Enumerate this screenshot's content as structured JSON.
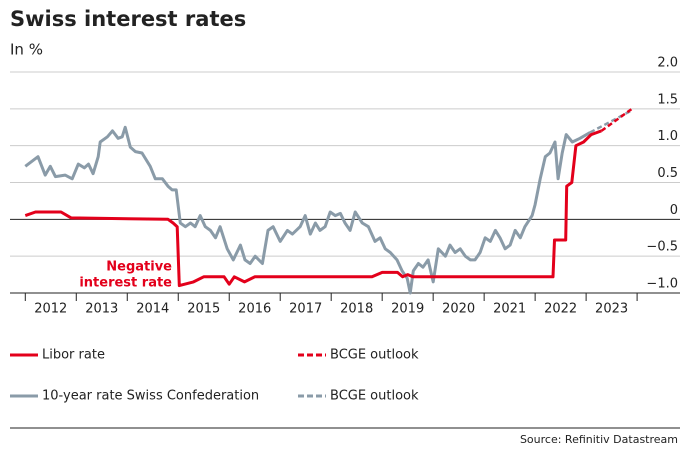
{
  "chart_data": {
    "type": "line",
    "title": "Swiss interest rates",
    "subtitle": "In %",
    "source": "Source: Refinitiv Datastream",
    "annotation": [
      "Negative",
      "interest rate"
    ],
    "xlim": [
      2011.7,
      2023.9
    ],
    "xticks": [
      {
        "value": 2012.5,
        "label": "2012"
      },
      {
        "value": 2013.5,
        "label": "2013"
      },
      {
        "value": 2014.5,
        "label": "2014"
      },
      {
        "value": 2015.5,
        "label": "2015"
      },
      {
        "value": 2016.5,
        "label": "2016"
      },
      {
        "value": 2017.5,
        "label": "2017"
      },
      {
        "value": 2018.5,
        "label": "2018"
      },
      {
        "value": 2019.5,
        "label": "2019"
      },
      {
        "value": 2020.5,
        "label": "2020"
      },
      {
        "value": 2021.5,
        "label": "2021"
      },
      {
        "value": 2022.5,
        "label": "2022"
      },
      {
        "value": 2023.5,
        "label": "2023"
      }
    ],
    "ylim": [
      -1.0,
      2.0
    ],
    "yticks": [
      {
        "value": 2.0,
        "label": "2.0"
      },
      {
        "value": 1.5,
        "label": "1.5"
      },
      {
        "value": 1.0,
        "label": "1.0"
      },
      {
        "value": 0.5,
        "label": "0.5"
      },
      0,
      {
        "value": -0.5,
        "label": "−0.5"
      },
      {
        "value": -1.0,
        "label": "−1.0"
      }
    ],
    "grid": true,
    "series": [
      {
        "name": "Libor rate",
        "color": "#e3001b",
        "dash": false,
        "x": [
          2012.0,
          2012.2,
          2012.7,
          2012.9,
          2014.8,
          2014.9,
          2014.98,
          2015.02,
          2015.3,
          2015.5,
          2015.9,
          2016.0,
          2016.1,
          2016.3,
          2016.5,
          2018.8,
          2019.0,
          2019.3,
          2019.4,
          2019.5,
          2019.6,
          2022.35,
          2022.38,
          2022.6,
          2022.62,
          2022.72,
          2022.8,
          2022.95,
          2023.1,
          2023.3
        ],
        "values": [
          0.05,
          0.1,
          0.1,
          0.02,
          0.0,
          -0.05,
          -0.1,
          -0.9,
          -0.85,
          -0.78,
          -0.78,
          -0.88,
          -0.78,
          -0.85,
          -0.78,
          -0.78,
          -0.72,
          -0.72,
          -0.78,
          -0.75,
          -0.78,
          -0.78,
          -0.28,
          -0.28,
          0.45,
          0.5,
          1.0,
          1.05,
          1.15,
          1.2
        ]
      },
      {
        "name": "BCGE outlook",
        "color": "#e3001b",
        "dash": true,
        "x": [
          2023.3,
          2023.9
        ],
        "values": [
          1.2,
          1.5
        ]
      },
      {
        "name": "10-year rate Swiss Confederation",
        "color": "#8a9ba8",
        "dash": false,
        "x": [
          2012.0,
          2012.25,
          2012.39,
          2012.49,
          2012.59,
          2012.78,
          2012.92,
          2013.04,
          2013.16,
          2013.24,
          2013.33,
          2013.43,
          2013.47,
          2013.61,
          2013.71,
          2013.82,
          2013.9,
          2013.96,
          2014.06,
          2014.16,
          2014.29,
          2014.45,
          2014.55,
          2014.69,
          2014.8,
          2014.88,
          2014.96,
          2015.04,
          2015.14,
          2015.24,
          2015.33,
          2015.43,
          2015.53,
          2015.63,
          2015.73,
          2015.82,
          2015.96,
          2016.08,
          2016.22,
          2016.31,
          2016.41,
          2016.51,
          2016.65,
          2016.76,
          2016.86,
          2017.0,
          2017.14,
          2017.24,
          2017.39,
          2017.49,
          2017.59,
          2017.69,
          2017.78,
          2017.88,
          2017.98,
          2018.08,
          2018.18,
          2018.27,
          2018.37,
          2018.47,
          2018.61,
          2018.73,
          2018.86,
          2018.96,
          2019.06,
          2019.16,
          2019.29,
          2019.39,
          2019.49,
          2019.55,
          2019.61,
          2019.71,
          2019.8,
          2019.9,
          2020.0,
          2020.1,
          2020.24,
          2020.33,
          2020.43,
          2020.53,
          2020.63,
          2020.73,
          2020.82,
          2020.92,
          2021.02,
          2021.12,
          2021.22,
          2021.31,
          2021.41,
          2021.51,
          2021.61,
          2021.71,
          2021.8,
          2021.94,
          2022.0,
          2022.1,
          2022.2,
          2022.29,
          2022.39,
          2022.45,
          2022.53,
          2022.61,
          2022.73,
          2022.88,
          2023.08
        ],
        "values": [
          0.72,
          0.85,
          0.6,
          0.72,
          0.58,
          0.6,
          0.55,
          0.75,
          0.7,
          0.75,
          0.62,
          0.85,
          1.05,
          1.12,
          1.2,
          1.1,
          1.12,
          1.25,
          0.98,
          0.92,
          0.9,
          0.72,
          0.55,
          0.55,
          0.45,
          0.4,
          0.4,
          -0.05,
          -0.1,
          -0.05,
          -0.1,
          0.05,
          -0.1,
          -0.15,
          -0.25,
          -0.1,
          -0.4,
          -0.55,
          -0.35,
          -0.55,
          -0.6,
          -0.5,
          -0.6,
          -0.15,
          -0.1,
          -0.3,
          -0.15,
          -0.2,
          -0.1,
          0.05,
          -0.2,
          -0.05,
          -0.15,
          -0.1,
          0.1,
          0.05,
          0.08,
          -0.05,
          -0.15,
          0.1,
          -0.05,
          -0.1,
          -0.3,
          -0.25,
          -0.4,
          -0.45,
          -0.55,
          -0.7,
          -0.8,
          -1.0,
          -0.7,
          -0.6,
          -0.65,
          -0.55,
          -0.85,
          -0.4,
          -0.5,
          -0.35,
          -0.45,
          -0.4,
          -0.5,
          -0.55,
          -0.55,
          -0.45,
          -0.25,
          -0.3,
          -0.15,
          -0.25,
          -0.4,
          -0.35,
          -0.15,
          -0.25,
          -0.1,
          0.05,
          0.2,
          0.55,
          0.85,
          0.9,
          1.05,
          0.55,
          0.9,
          1.15,
          1.05,
          1.1,
          1.18
        ]
      },
      {
        "name": "BCGE outlook",
        "color": "#8a9ba8",
        "dash": true,
        "x": [
          2023.08,
          2023.9
        ],
        "values": [
          1.18,
          1.48
        ]
      }
    ]
  }
}
